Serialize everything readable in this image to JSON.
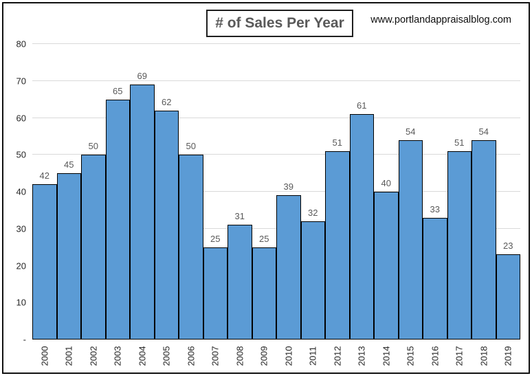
{
  "header": {
    "title": "# of Sales Per Year",
    "website": "www.portlandappraisalblog.com"
  },
  "chart_data": {
    "type": "bar",
    "title": "# of Sales Per Year",
    "categories": [
      "2000",
      "2001",
      "2002",
      "2003",
      "2004",
      "2005",
      "2006",
      "2007",
      "2008",
      "2009",
      "2010",
      "2011",
      "2012",
      "2013",
      "2014",
      "2015",
      "2016",
      "2017",
      "2018",
      "2019"
    ],
    "values": [
      42,
      45,
      50,
      65,
      69,
      62,
      50,
      25,
      31,
      25,
      39,
      32,
      51,
      61,
      40,
      54,
      33,
      51,
      54,
      23
    ],
    "xlabel": "",
    "ylabel": "",
    "ylim": [
      0,
      80
    ],
    "ytick_values": [
      0,
      10,
      20,
      30,
      40,
      50,
      60,
      70,
      80
    ],
    "ytick_labels": [
      "-",
      "10",
      "20",
      "30",
      "40",
      "50",
      "60",
      "70",
      "80"
    ],
    "grid": true,
    "legend": "none",
    "data_labels": true,
    "colors": {
      "bar_fill": "#5b9bd5",
      "bar_border": "#000000",
      "gridline": "#d9d9d9",
      "data_label": "#595959",
      "axis_label": "#262626",
      "title_text": "#595959",
      "frame_border": "#111111"
    }
  }
}
